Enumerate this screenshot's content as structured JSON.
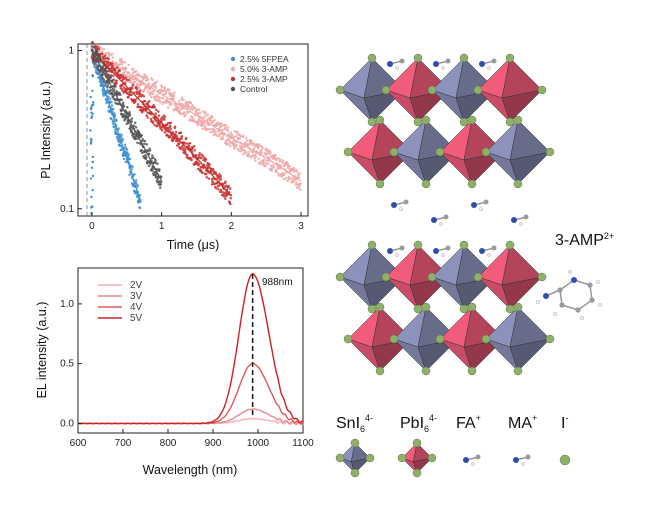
{
  "chart_data": [
    {
      "type": "scatter",
      "panel": "top-left",
      "xlabel": "Time (μs)",
      "ylabel": "PL Intensity (a.u.)",
      "xlim": [
        -0.2,
        3.1
      ],
      "ylim": [
        0.09,
        1.1
      ],
      "yscale": "log",
      "xticks": [
        "0",
        "1",
        "2",
        "3"
      ],
      "yticks": [
        "0.1",
        "1"
      ],
      "legend_position": "top-right",
      "series": [
        {
          "name": "2.5% 5FPEA",
          "color": "#3f8fd2",
          "x": [
            0,
            0.1,
            0.2,
            0.3,
            0.4,
            0.5,
            0.6,
            0.7
          ],
          "y": [
            1.0,
            0.73,
            0.53,
            0.39,
            0.28,
            0.21,
            0.15,
            0.11
          ]
        },
        {
          "name": "5.0% 3-AMP",
          "color": "#f0a8a8",
          "x": [
            0,
            0.5,
            1.0,
            1.5,
            2.0,
            2.5,
            3.0
          ],
          "y": [
            1.0,
            0.73,
            0.53,
            0.39,
            0.28,
            0.21,
            0.15
          ]
        },
        {
          "name": "2.5% 3-AMP",
          "color": "#c83232",
          "x": [
            0,
            0.5,
            1.0,
            1.5,
            2.0
          ],
          "y": [
            1.0,
            0.59,
            0.35,
            0.21,
            0.12
          ]
        },
        {
          "name": "Control",
          "color": "#555555",
          "x": [
            0,
            0.2,
            0.4,
            0.6,
            0.8,
            1.0
          ],
          "y": [
            1.0,
            0.69,
            0.47,
            0.32,
            0.22,
            0.15
          ]
        }
      ]
    },
    {
      "type": "line",
      "panel": "bottom-left",
      "xlabel": "Wavelength (nm)",
      "ylabel": "EL intensity (a.u.)",
      "xlim": [
        600,
        1100
      ],
      "ylim": [
        -0.08,
        1.3
      ],
      "xticks": [
        "600",
        "700",
        "800",
        "900",
        "1000",
        "1100"
      ],
      "yticks": [
        "0.0",
        "0.5",
        "1.0"
      ],
      "legend_position": "top-left",
      "peak_label": "988nm",
      "peak_x": 988,
      "series": [
        {
          "name": "2V",
          "color": "#f2b2b2",
          "peak": 0.04
        },
        {
          "name": "3V",
          "color": "#e98a8a",
          "peak": 0.12
        },
        {
          "name": "4V",
          "color": "#dc5a5a",
          "peak": 0.5
        },
        {
          "name": "5V",
          "color": "#cc2222",
          "peak": 1.25
        }
      ]
    }
  ],
  "structure": {
    "cation_label": "3-AMP",
    "cation_charge": "2+",
    "legend": [
      {
        "base": "SnI",
        "sub": "6",
        "sup": "4-"
      },
      {
        "base": "PbI",
        "sub": "6",
        "sup": "4-"
      },
      {
        "base": "FA",
        "sub": "",
        "sup": "+"
      },
      {
        "base": "MA",
        "sub": "",
        "sup": "+"
      },
      {
        "base": "I",
        "sub": "",
        "sup": "-"
      }
    ],
    "colors": {
      "sn_octahedron": "#7a7fa3",
      "pb_octahedron": "#d2506a",
      "iodide": "#8fb06a",
      "fa_nitrogen": "#2f4fb0",
      "carbon": "#9a9a9a"
    }
  }
}
